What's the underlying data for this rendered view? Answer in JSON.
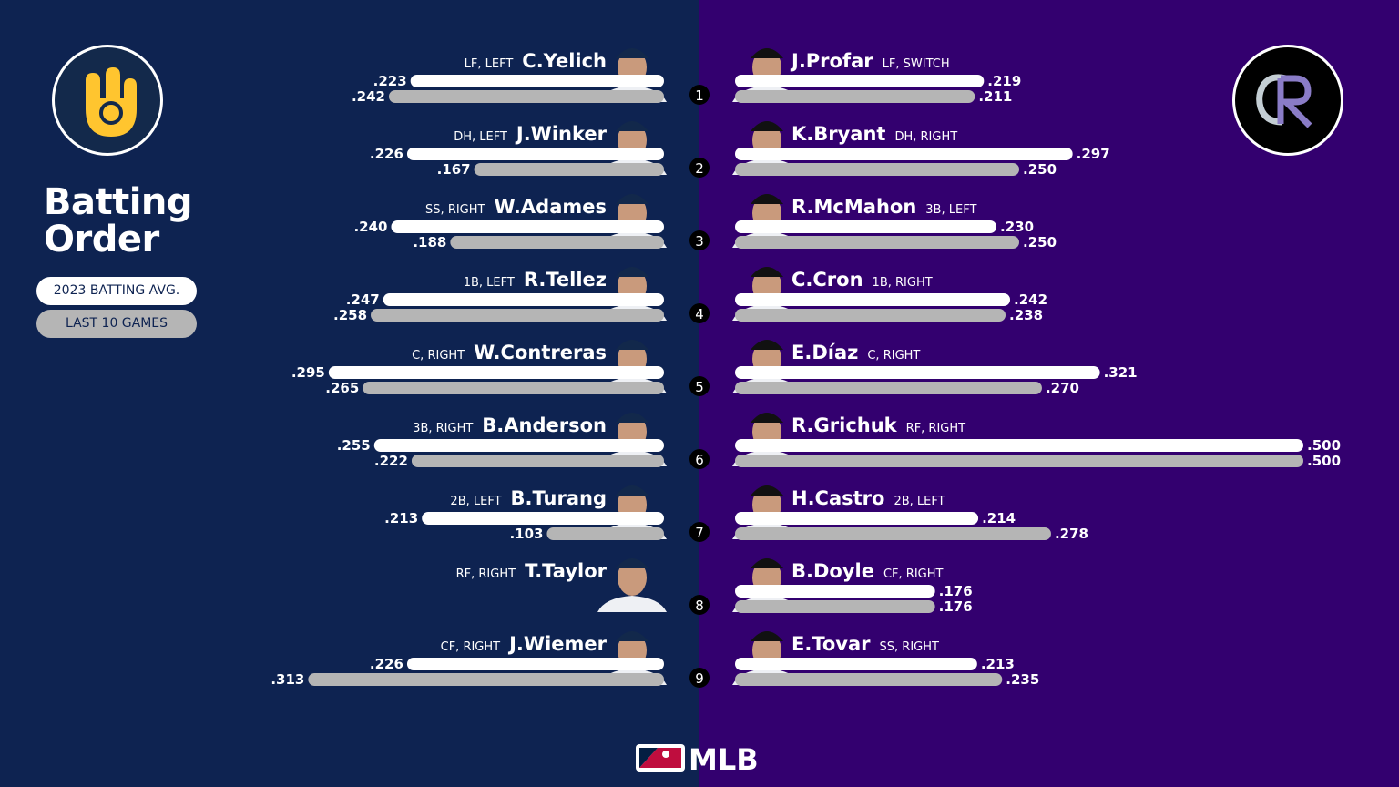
{
  "title": "Batting\nOrder",
  "legend": {
    "season": "2023 BATTING AVG.",
    "last10": "LAST 10 GAMES"
  },
  "footer_logo": "MLB",
  "colors": {
    "brewers_navy": "#0e2351",
    "rockies_purple": "#33006f",
    "season_bar": "#ffffff",
    "last10_bar": "#b5b5b5",
    "brewers_gold": "#ffc52f"
  },
  "chart_data": {
    "type": "bar",
    "series": [
      {
        "name": "2023 BATTING AVG."
      },
      {
        "name": "LAST 10 GAMES"
      }
    ],
    "categories": [
      "1",
      "2",
      "3",
      "4",
      "5",
      "6",
      "7",
      "8",
      "9"
    ],
    "teams": [
      {
        "team": "Brewers",
        "players": [
          {
            "order": "1",
            "name": "C.Yelich",
            "meta": "LF, LEFT",
            "season": 0.223,
            "last10": 0.242,
            "season_label": ".223",
            "last10_label": ".242"
          },
          {
            "order": "2",
            "name": "J.Winker",
            "meta": "DH, LEFT",
            "season": 0.226,
            "last10": 0.167,
            "season_label": ".226",
            "last10_label": ".167"
          },
          {
            "order": "3",
            "name": "W.Adames",
            "meta": "SS, RIGHT",
            "season": 0.24,
            "last10": 0.188,
            "season_label": ".240",
            "last10_label": ".188"
          },
          {
            "order": "4",
            "name": "R.Tellez",
            "meta": "1B, LEFT",
            "season": 0.247,
            "last10": 0.258,
            "season_label": ".247",
            "last10_label": ".258"
          },
          {
            "order": "5",
            "name": "W.Contreras",
            "meta": "C, RIGHT",
            "season": 0.295,
            "last10": 0.265,
            "season_label": ".295",
            "last10_label": ".265"
          },
          {
            "order": "6",
            "name": "B.Anderson",
            "meta": "3B, RIGHT",
            "season": 0.255,
            "last10": 0.222,
            "season_label": ".255",
            "last10_label": ".222"
          },
          {
            "order": "7",
            "name": "B.Turang",
            "meta": "2B, LEFT",
            "season": 0.213,
            "last10": 0.103,
            "season_label": ".213",
            "last10_label": ".103"
          },
          {
            "order": "8",
            "name": "T.Taylor",
            "meta": "RF, RIGHT",
            "season": null,
            "last10": null,
            "season_label": "",
            "last10_label": ""
          },
          {
            "order": "9",
            "name": "J.Wiemer",
            "meta": "CF, RIGHT",
            "season": 0.226,
            "last10": 0.313,
            "season_label": ".226",
            "last10_label": ".313"
          }
        ]
      },
      {
        "team": "Rockies",
        "players": [
          {
            "order": "1",
            "name": "J.Profar",
            "meta": "LF, SWITCH",
            "season": 0.219,
            "last10": 0.211,
            "season_label": ".219",
            "last10_label": ".211"
          },
          {
            "order": "2",
            "name": "K.Bryant",
            "meta": "DH, RIGHT",
            "season": 0.297,
            "last10": 0.25,
            "season_label": ".297",
            "last10_label": ".250"
          },
          {
            "order": "3",
            "name": "R.McMahon",
            "meta": "3B, LEFT",
            "season": 0.23,
            "last10": 0.25,
            "season_label": ".230",
            "last10_label": ".250"
          },
          {
            "order": "4",
            "name": "C.Cron",
            "meta": "1B, RIGHT",
            "season": 0.242,
            "last10": 0.238,
            "season_label": ".242",
            "last10_label": ".238"
          },
          {
            "order": "5",
            "name": "E.Díaz",
            "meta": "C, RIGHT",
            "season": 0.321,
            "last10": 0.27,
            "season_label": ".321",
            "last10_label": ".270"
          },
          {
            "order": "6",
            "name": "R.Grichuk",
            "meta": "RF, RIGHT",
            "season": 0.5,
            "last10": 0.5,
            "season_label": ".500",
            "last10_label": ".500"
          },
          {
            "order": "7",
            "name": "H.Castro",
            "meta": "2B, LEFT",
            "season": 0.214,
            "last10": 0.278,
            "season_label": ".214",
            "last10_label": ".278"
          },
          {
            "order": "8",
            "name": "B.Doyle",
            "meta": "CF, RIGHT",
            "season": 0.176,
            "last10": 0.176,
            "season_label": ".176",
            "last10_label": ".176"
          },
          {
            "order": "9",
            "name": "E.Tovar",
            "meta": "SS, RIGHT",
            "season": 0.213,
            "last10": 0.235,
            "season_label": ".213",
            "last10_label": ".235"
          }
        ]
      }
    ],
    "legend_position": "left",
    "grid": false
  }
}
